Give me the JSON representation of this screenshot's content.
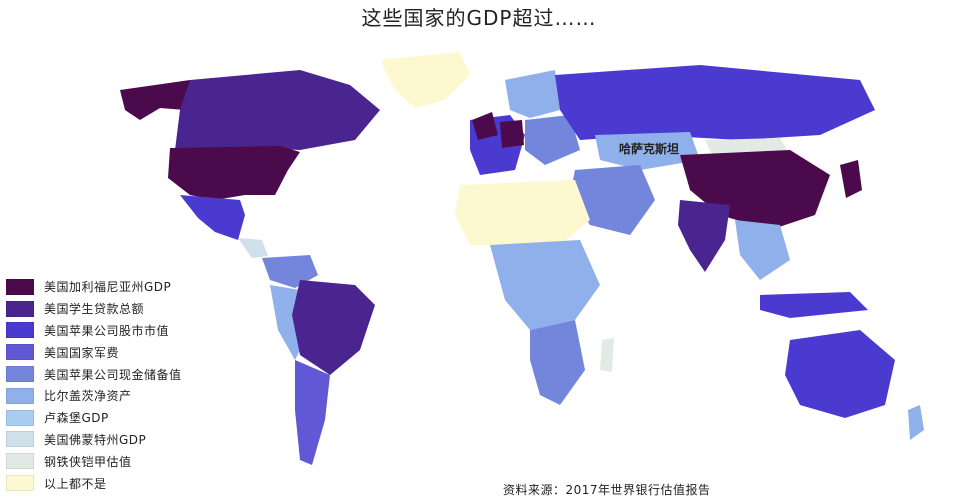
{
  "title": "这些国家的GDP超过……",
  "source": "资料来源：2017年世界银行估值报告",
  "map_label": "哈萨克斯坦",
  "legend": [
    {
      "label": "美国加利福尼亚州GDP",
      "color": "#4b0a4b"
    },
    {
      "label": "美国学生贷款总额",
      "color": "#4a2590"
    },
    {
      "label": "美国苹果公司股市市值",
      "color": "#4a3ad0"
    },
    {
      "label": "美国国家军费",
      "color": "#6058d4"
    },
    {
      "label": "美国苹果公司现金储备值",
      "color": "#7386dc"
    },
    {
      "label": "比尔盖茨净资产",
      "color": "#8fb0ea"
    },
    {
      "label": "卢森堡GDP",
      "color": "#a9cdf1"
    },
    {
      "label": "美国佛蒙特州GDP",
      "color": "#cfe0ea"
    },
    {
      "label": "钢铁侠铠甲估值",
      "color": "#e2eae6"
    },
    {
      "label": "以上都不是",
      "color": "#fdf8d0"
    }
  ]
}
